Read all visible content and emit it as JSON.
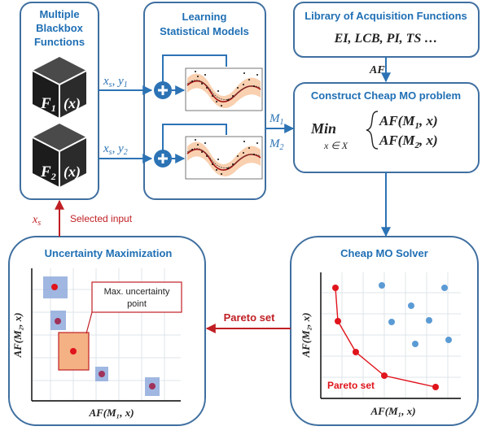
{
  "blackbox": {
    "title_lines": [
      "Multiple",
      "Blackbox",
      "Functions"
    ],
    "f1": "F",
    "f1_sub": "1",
    "f1_arg": "(x)",
    "f2": "F",
    "f2_sub": "2",
    "f2_arg": "(x)"
  },
  "learning": {
    "title_lines": [
      "Learning",
      "Statistical Models"
    ]
  },
  "library": {
    "title": "Library of Acquisition Functions",
    "functions": "EI, LCB, PI, TS …"
  },
  "cheap_problem": {
    "title": "Construct Cheap MO problem",
    "min": "Min",
    "constraint": "x ∈ X",
    "obj1": "AF(M",
    "obj1_sub": "1",
    "obj1_end": ", x)",
    "obj2": "AF(M",
    "obj2_sub": "2",
    "obj2_end": ", x)"
  },
  "solver": {
    "title": "Cheap MO Solver",
    "pareto_label": "Pareto set",
    "xlabel": "AF(M₁, x)",
    "ylabel": "AF(M₂, x)"
  },
  "uncertainty": {
    "title": "Uncertainty Maximization",
    "callout": [
      "Max. uncertainty",
      "point"
    ],
    "xlabel": "AF(M₁, x)",
    "ylabel": "AF(M₂, x)"
  },
  "edges": {
    "xs_y1": "x",
    "xs_y1_s": "s",
    "xs_y1_y": ", y",
    "xs_y1_sub": "1",
    "xs_y2": "x",
    "xs_y2_s": "s",
    "xs_y2_y": ", y",
    "xs_y2_sub": "2",
    "m1": "M",
    "m1_sub": "1",
    "m2": "M",
    "m2_sub": "2",
    "af": "AF",
    "pareto_set": "Pareto set",
    "xs": "x",
    "xs_sub": "s",
    "selected_input": "Selected input"
  },
  "colors": {
    "blue": "#2c73b5",
    "red": "#c01f24",
    "pareto_red": "#e0141c",
    "point_blue": "#5b9bd5",
    "uncert_box": "#8faadc",
    "uncert_box_highlight": "#f4b183"
  }
}
